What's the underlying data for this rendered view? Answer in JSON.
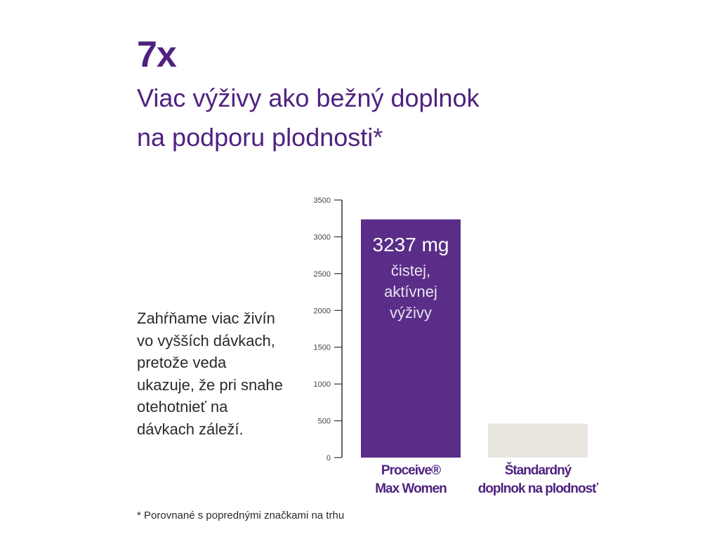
{
  "headline": {
    "multiplier": "7x",
    "line1": "Viac výživy ako bežný doplnok",
    "line2": "na podporu plodnosti*"
  },
  "side_text": "Zahŕňame viac živín vo vyšších dávkach, pretože veda ukazuje, že pri snahe otehotnieť na dávkach záleží.",
  "footnote": "* Porovnané s poprednými značkami na trhu",
  "colors": {
    "primary_purple": "#4f2280",
    "bar_purple": "#5a2d88",
    "bar_grey": "#e9e6e0"
  },
  "chart_data": {
    "type": "bar",
    "categories": [
      [
        "Proceive®",
        "Max Women"
      ],
      [
        "Štandardný",
        "doplnok na plodnosť"
      ]
    ],
    "values": [
      3237,
      462
    ],
    "ylim": [
      0,
      3500
    ],
    "yticks": [
      0,
      500,
      1000,
      1500,
      2000,
      2500,
      3000,
      3500
    ],
    "bar_colors": [
      "#5a2d88",
      "#e9e6e0"
    ],
    "annotation": {
      "value_label": "3237 mg",
      "lines": [
        "čistej,",
        "aktívnej",
        "výživy"
      ]
    },
    "grid": false,
    "legend": "none"
  }
}
